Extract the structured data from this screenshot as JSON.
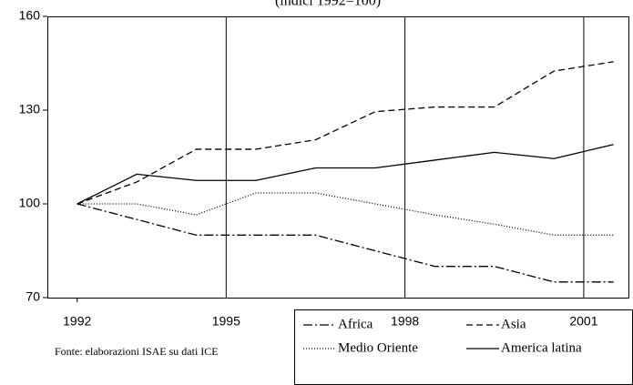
{
  "chart_data": {
    "type": "line",
    "title": "(indici 1992=100)",
    "x": [
      1992,
      1993,
      1994,
      1995,
      1996,
      1997,
      1998,
      1999,
      2000,
      2001
    ],
    "xlim": [
      1991.5,
      2001.25
    ],
    "xticks": [
      1992,
      {
        "value": 1994.5,
        "label": "1995"
      },
      {
        "value": 1997.5,
        "label": "1998"
      },
      {
        "value": 2000.5,
        "label": "2001"
      }
    ],
    "ylim": [
      70,
      160
    ],
    "yticks": [
      70,
      100,
      130,
      160
    ],
    "grid": true,
    "series": [
      {
        "name": "Africa",
        "color": "#000000",
        "dash": "10,3,2,3",
        "values": [
          100,
          95,
          90,
          90,
          90,
          85,
          80,
          80,
          75,
          75
        ]
      },
      {
        "name": "Asia",
        "color": "#000000",
        "dash": "7,4",
        "values": [
          100,
          107,
          117.5,
          117.5,
          120.5,
          129.5,
          131,
          131,
          142.5,
          145.5
        ]
      },
      {
        "name": "Medio Oriente",
        "color": "#000000",
        "dash": "1,2",
        "values": [
          100,
          100,
          96.5,
          103.5,
          103.5,
          100,
          96.5,
          93.5,
          90,
          90
        ]
      },
      {
        "name": "America latina",
        "color": "#000000",
        "dash": "none",
        "values": [
          100,
          109.5,
          107.5,
          107.5,
          111.5,
          111.5,
          114,
          116.5,
          114.5,
          119
        ]
      }
    ],
    "source": "Fonte: elaborazioni ISAE su dati ICE"
  }
}
